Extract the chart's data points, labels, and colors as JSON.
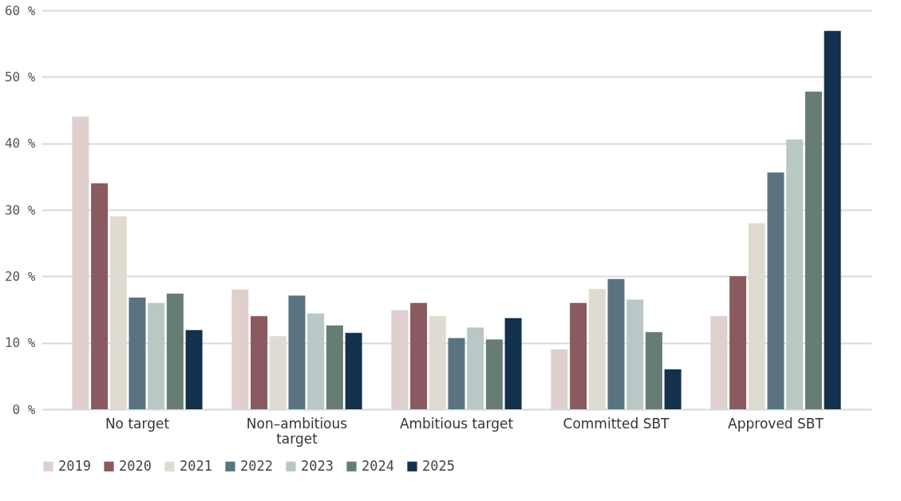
{
  "chart_data": {
    "type": "bar",
    "categories": [
      "No target",
      "Non–ambitious target",
      "Ambitious target",
      "Committed SBT",
      "Approved SBT"
    ],
    "series": [
      {
        "name": "2019",
        "color": "#e0cfcf",
        "values": [
          44,
          18,
          14.9,
          9,
          14
        ]
      },
      {
        "name": "2020",
        "color": "#8a5a5e",
        "values": [
          34,
          14,
          16,
          16,
          20
        ]
      },
      {
        "name": "2021",
        "color": "#dfdbd0",
        "values": [
          29,
          11,
          14,
          18.1,
          28
        ]
      },
      {
        "name": "2022",
        "color": "#5a7380",
        "values": [
          16.8,
          17.1,
          10.7,
          19.6,
          35.6
        ]
      },
      {
        "name": "2023",
        "color": "#b9c8c4",
        "values": [
          16,
          14.4,
          12.3,
          16.5,
          40.6
        ]
      },
      {
        "name": "2024",
        "color": "#677d74",
        "values": [
          17.4,
          12.6,
          10.5,
          11.6,
          47.8
        ]
      },
      {
        "name": "2025",
        "color": "#13304d",
        "values": [
          11.9,
          11.5,
          13.7,
          6,
          56.9
        ]
      }
    ],
    "ylim": [
      0,
      60
    ],
    "yticks": [
      {
        "value": 0,
        "label": "0 %"
      },
      {
        "value": 10,
        "label": "10 %"
      },
      {
        "value": 20,
        "label": "20 %"
      },
      {
        "value": 30,
        "label": "30 %"
      },
      {
        "value": 40,
        "label": "40 %"
      },
      {
        "value": 50,
        "label": "50 %"
      },
      {
        "value": 60,
        "label": "60 %"
      }
    ],
    "grid": "y",
    "legend": "bottom"
  }
}
